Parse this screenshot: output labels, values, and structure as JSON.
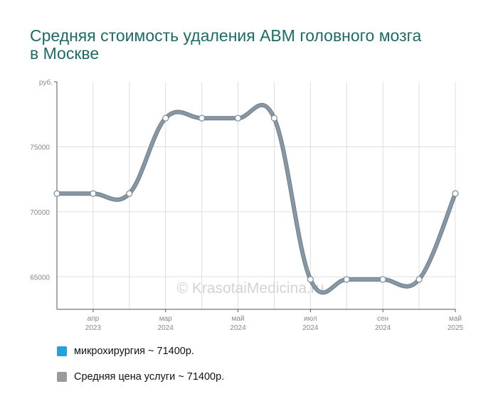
{
  "chart_data": {
    "type": "line",
    "title": "Средняя стоимость удаления АВМ головного мозга в Москве",
    "ylabel": "руб.",
    "ylim": [
      62500,
      80000
    ],
    "y_ticks": [
      65000,
      70000,
      75000
    ],
    "x": [
      0,
      1,
      2,
      3,
      4,
      5,
      6,
      7,
      8,
      9,
      10,
      11
    ],
    "x_ticks": [
      {
        "pos": 1,
        "month": "апр",
        "year": "2023"
      },
      {
        "pos": 3,
        "month": "мар",
        "year": "2024"
      },
      {
        "pos": 5,
        "month": "май",
        "year": "2024"
      },
      {
        "pos": 7,
        "month": "июл",
        "year": "2024"
      },
      {
        "pos": 9,
        "month": "сен",
        "year": "2024"
      },
      {
        "pos": 11,
        "month": "май",
        "year": "2025"
      }
    ],
    "series": [
      {
        "name": "Средняя цена услуги",
        "values": [
          71400,
          71400,
          71400,
          77200,
          77200,
          77200,
          77200,
          64800,
          64800,
          64800,
          64800,
          71400
        ]
      }
    ],
    "grid": true,
    "watermark": "© KrasotaiMedicina.ru",
    "colors": {
      "line": "#8797a3",
      "line_edge": "#6f7f8a",
      "grid": "#dddddd",
      "axis": "#555555",
      "title": "#1b6b66"
    }
  },
  "legend": [
    {
      "label": "микрохирургия ~ 71400р.",
      "color": "#259fdd"
    },
    {
      "label": "Средняя цена услуги ~ 71400р.",
      "color": "#9a9a9a"
    }
  ]
}
